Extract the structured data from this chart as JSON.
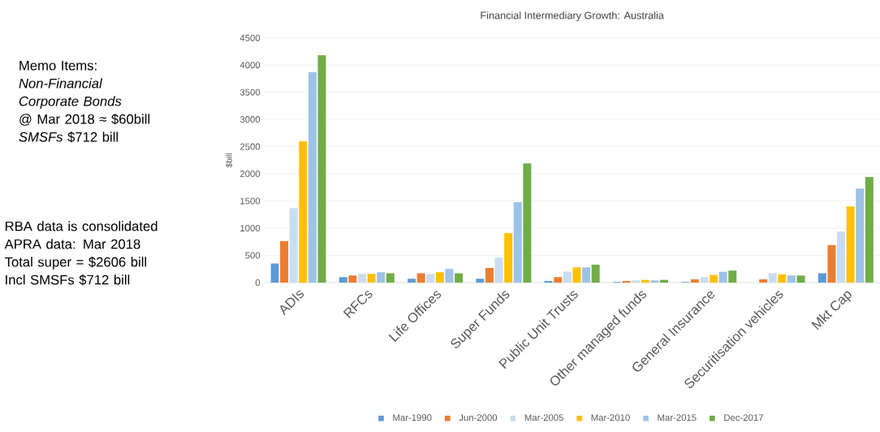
{
  "chart_data": {
    "type": "bar",
    "title": "Financial Intermediary Growth: Australia",
    "ylabel": "$bill",
    "categories": [
      "ADIs",
      "RFCs",
      "Life Offices",
      "Super Funds",
      "Public Unit Trusts",
      "Other managed funds",
      "General Insurance",
      "Securitisation vehicles",
      "Mkt Cap"
    ],
    "series": [
      {
        "name": "Mar-1990",
        "color": "#5b9bd5",
        "values": [
          350,
          100,
          70,
          70,
          30,
          10,
          10,
          null,
          170
        ]
      },
      {
        "name": "Jun-2000",
        "color": "#ed7d31",
        "values": [
          760,
          130,
          170,
          270,
          100,
          30,
          60,
          60,
          690
        ]
      },
      {
        "name": "Mar-2005",
        "color": "#c9ddf2",
        "values": [
          1370,
          160,
          160,
          460,
          200,
          40,
          100,
          170,
          940
        ]
      },
      {
        "name": "Mar-2010",
        "color": "#ffc000",
        "values": [
          2600,
          160,
          190,
          910,
          280,
          50,
          140,
          150,
          1400
        ]
      },
      {
        "name": "Mar-2015",
        "color": "#9dc3e6",
        "values": [
          3870,
          190,
          250,
          1480,
          280,
          40,
          200,
          130,
          1730
        ]
      },
      {
        "name": "Dec-2017",
        "color": "#70ad47",
        "values": [
          4180,
          170,
          170,
          2190,
          330,
          50,
          220,
          130,
          1940
        ]
      }
    ],
    "ylim": [
      0,
      4500
    ],
    "yticks": [
      0,
      500,
      1000,
      1500,
      2000,
      2500,
      3000,
      3500,
      4000,
      4500
    ],
    "grid": "y",
    "legend": "bottom",
    "annotations": [
      "Memo Items:",
      "*Non-Financial Corporate Bonds*",
      "@ Mar 2018 ≈ $60bill",
      "*SMSFs* $712 bill",
      "RBA data is consolidated",
      "APRA data: Mar 2018",
      "Total super = $2606 bill",
      "Incl SMSFs $712 bill"
    ]
  }
}
